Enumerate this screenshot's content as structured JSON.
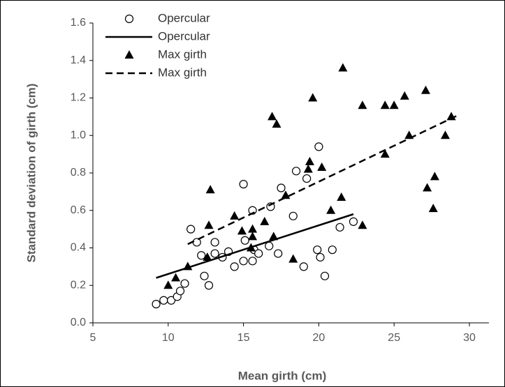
{
  "chart_data": {
    "type": "scatter",
    "x_label": "Mean girth (cm)",
    "y_label": "Standard deviation of girth (cm)",
    "xlim": [
      5,
      30
    ],
    "xticks": [
      5,
      10,
      15,
      20,
      25,
      30
    ],
    "ylim": [
      0,
      1.6
    ],
    "yticks": [
      {
        "value": 0,
        "label": "0.0"
      },
      0.2,
      0.4,
      0.6,
      0.8,
      {
        "value": 1,
        "label": "1.0"
      },
      1.2,
      1.4,
      1.6
    ],
    "grid": false,
    "legend": "top-left",
    "series": [
      {
        "name": "Opercular",
        "type": "scatter",
        "marker": "circle",
        "color": "#000000",
        "x": [
          9.2,
          9.7,
          10.2,
          10.6,
          10.8,
          11.1,
          11.5,
          11.9,
          12.2,
          12.4,
          12.7,
          13.1,
          13.1,
          13.6,
          14.0,
          14.4,
          15.0,
          15.0,
          15.1,
          15.6,
          15.6,
          15.7,
          16.0,
          16.8,
          16.7,
          17.3,
          17.5,
          18.3,
          18.5,
          19.0,
          19.2,
          20.0,
          19.9,
          20.1,
          20.4,
          20.9,
          21.4,
          22.3
        ],
        "values": [
          0.1,
          0.12,
          0.12,
          0.14,
          0.17,
          0.21,
          0.5,
          0.43,
          0.36,
          0.25,
          0.2,
          0.37,
          0.43,
          0.35,
          0.38,
          0.3,
          0.33,
          0.74,
          0.44,
          0.33,
          0.6,
          0.39,
          0.37,
          0.62,
          0.41,
          0.37,
          0.72,
          0.57,
          0.81,
          0.3,
          0.77,
          0.94,
          0.39,
          0.35,
          0.25,
          0.39,
          0.51,
          0.54
        ]
      },
      {
        "name": "Opercular",
        "type": "line",
        "dash": false,
        "color": "#000000",
        "x": [
          9.2,
          22.3
        ],
        "values": [
          0.24,
          0.58
        ]
      },
      {
        "name": "Max girth",
        "type": "scatter",
        "marker": "triangle",
        "color": "#000000",
        "x": [
          10.0,
          10.5,
          11.3,
          12.8,
          12.7,
          12.6,
          14.4,
          14.9,
          15.5,
          15.6,
          15.6,
          16.4,
          16.9,
          17.2,
          17.0,
          17.8,
          18.3,
          19.3,
          19.4,
          19.6,
          20.2,
          20.8,
          21.5,
          21.6,
          22.9,
          22.9,
          24.4,
          24.4,
          25.0,
          25.7,
          26.0,
          27.1,
          27.2,
          27.7,
          27.6,
          28.4,
          28.8
        ],
        "values": [
          0.2,
          0.24,
          0.3,
          0.71,
          0.52,
          0.35,
          0.57,
          0.49,
          0.4,
          0.46,
          0.5,
          0.54,
          1.1,
          1.06,
          0.46,
          0.68,
          0.34,
          0.82,
          0.86,
          1.2,
          0.83,
          0.6,
          0.67,
          1.36,
          0.52,
          1.16,
          1.16,
          0.9,
          1.16,
          1.21,
          1.0,
          1.24,
          0.72,
          0.78,
          0.61,
          1.0,
          1.1
        ]
      },
      {
        "name": "Max girth",
        "type": "line",
        "dash": true,
        "color": "#000000",
        "x": [
          11.3,
          29.3
        ],
        "values": [
          0.42,
          1.11
        ]
      }
    ]
  }
}
